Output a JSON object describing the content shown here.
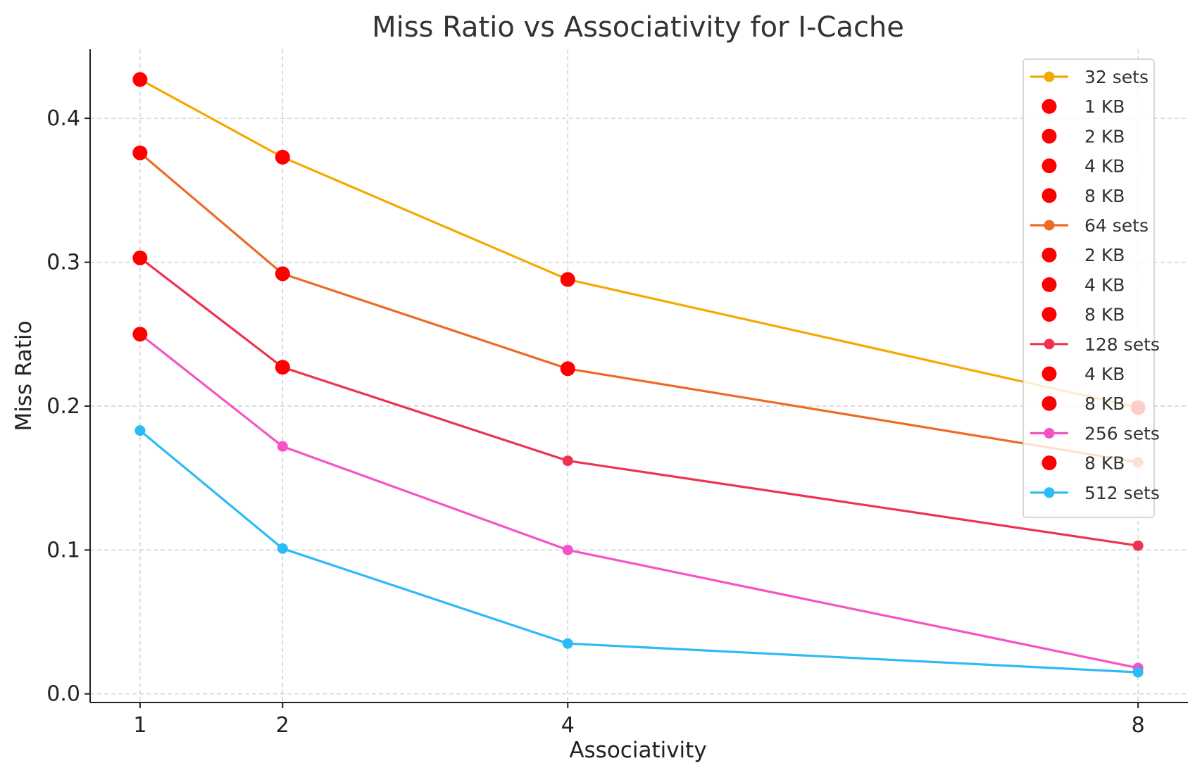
{
  "chart_data": {
    "type": "line",
    "title": "Miss Ratio vs Associativity for I-Cache",
    "xlabel": "Associativity",
    "ylabel": "Miss Ratio",
    "x": [
      1,
      2,
      4,
      8
    ],
    "x_tick_labels": [
      "1",
      "2",
      "4",
      "8"
    ],
    "y_ticks": [
      0.0,
      0.1,
      0.2,
      0.3,
      0.4
    ],
    "y_tick_labels": [
      "0.0",
      "0.1",
      "0.2",
      "0.3",
      "0.4"
    ],
    "xlim": [
      0.65,
      8.35
    ],
    "ylim": [
      -0.006,
      0.448
    ],
    "grid": true,
    "legend_position": "top-right",
    "series": [
      {
        "name": "32 sets",
        "color": "#F5A800",
        "values": [
          0.427,
          0.373,
          0.288,
          0.199
        ]
      },
      {
        "name": "64 sets",
        "color": "#EE6A22",
        "values": [
          0.376,
          0.292,
          0.226,
          0.161
        ]
      },
      {
        "name": "128 sets",
        "color": "#EE3350",
        "values": [
          0.303,
          0.227,
          0.162,
          0.103
        ]
      },
      {
        "name": "256 sets",
        "color": "#F553C5",
        "values": [
          0.25,
          0.172,
          0.1,
          0.018
        ]
      },
      {
        "name": "512 sets",
        "color": "#2BBBF5",
        "values": [
          0.183,
          0.101,
          0.035,
          0.015
        ]
      }
    ],
    "highlight_color": "#FF0000",
    "highlight_points": [
      {
        "label": "1 KB",
        "x": 1,
        "y": 0.427
      },
      {
        "label": "2 KB",
        "x": 2,
        "y": 0.373
      },
      {
        "label": "4 KB",
        "x": 4,
        "y": 0.288
      },
      {
        "label": "8 KB",
        "x": 8,
        "y": 0.199
      },
      {
        "label": "2 KB",
        "x": 1,
        "y": 0.376
      },
      {
        "label": "4 KB",
        "x": 2,
        "y": 0.292
      },
      {
        "label": "8 KB",
        "x": 4,
        "y": 0.226
      },
      {
        "label": "4 KB",
        "x": 1,
        "y": 0.303
      },
      {
        "label": "8 KB",
        "x": 2,
        "y": 0.227
      },
      {
        "label": "8 KB",
        "x": 1,
        "y": 0.25
      }
    ],
    "legend_entries": [
      {
        "label": "32 sets",
        "kind": "line",
        "color": "#F5A800"
      },
      {
        "label": "1 KB",
        "kind": "dot",
        "color": "#FF0000"
      },
      {
        "label": "2 KB",
        "kind": "dot",
        "color": "#FF0000"
      },
      {
        "label": "4 KB",
        "kind": "dot",
        "color": "#FF0000"
      },
      {
        "label": "8 KB",
        "kind": "dot",
        "color": "#FF0000"
      },
      {
        "label": "64 sets",
        "kind": "line",
        "color": "#EE6A22"
      },
      {
        "label": "2 KB",
        "kind": "dot",
        "color": "#FF0000"
      },
      {
        "label": "4 KB",
        "kind": "dot",
        "color": "#FF0000"
      },
      {
        "label": "8 KB",
        "kind": "dot",
        "color": "#FF0000"
      },
      {
        "label": "128 sets",
        "kind": "line",
        "color": "#EE3350"
      },
      {
        "label": "4 KB",
        "kind": "dot",
        "color": "#FF0000"
      },
      {
        "label": "8 KB",
        "kind": "dot",
        "color": "#FF0000"
      },
      {
        "label": "256 sets",
        "kind": "line",
        "color": "#F553C5"
      },
      {
        "label": "8 KB",
        "kind": "dot",
        "color": "#FF0000"
      },
      {
        "label": "512 sets",
        "kind": "line",
        "color": "#2BBBF5"
      }
    ]
  }
}
